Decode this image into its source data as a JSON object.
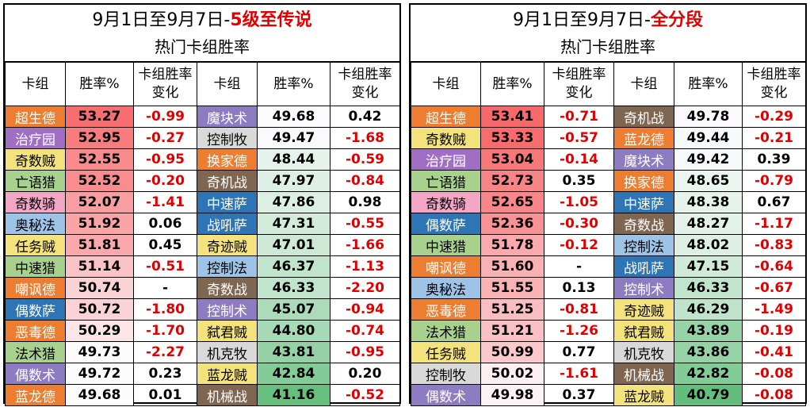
{
  "colors": {
    "class": {
      "druid": "#ED7D31",
      "priest": "#D9D9D9",
      "rogue": "#F4E27C",
      "hunter": "#A9D18E",
      "paladin": "#F4A6C6",
      "mage": "#9DC3E6",
      "shaman": "#2E75B6",
      "demonhunter": "#A06FC4",
      "warrior": "#7F6651",
      "warlock": "#8E7CC3"
    },
    "negative_text": "#E00000",
    "title_highlight": "#E00000"
  },
  "left": {
    "title_prefix": "9月1日至9月7日-",
    "title_highlight": "5级至传说",
    "subtitle": "热门卡组胜率",
    "headers": [
      "卡组",
      "胜率%",
      "卡组胜率变化",
      "卡组",
      "胜率%",
      "卡组胜率变化"
    ],
    "rows": [
      {
        "d1": "超生德",
        "c1": "druid",
        "r1": "53.27",
        "x1": "-0.99",
        "d2": "魔块术",
        "c2": "warlock",
        "r2": "49.68",
        "x2": "0.42"
      },
      {
        "d1": "治疗园",
        "c1": "demonhunter",
        "r1": "52.95",
        "x1": "-0.27",
        "d2": "控制牧",
        "c2": "priest",
        "r2": "49.47",
        "x2": "-1.68"
      },
      {
        "d1": "奇数贼",
        "c1": "rogue",
        "r1": "52.55",
        "x1": "-0.95",
        "d2": "换家德",
        "c2": "druid",
        "r2": "48.44",
        "x2": "-0.59"
      },
      {
        "d1": "亡语猎",
        "c1": "hunter",
        "r1": "52.52",
        "x1": "-0.20",
        "d2": "奇机战",
        "c2": "warrior",
        "r2": "47.97",
        "x2": "-0.84"
      },
      {
        "d1": "奇数骑",
        "c1": "paladin",
        "r1": "52.07",
        "x1": "-1.41",
        "d2": "中速萨",
        "c2": "shaman",
        "r2": "47.86",
        "x2": "0.98"
      },
      {
        "d1": "奥秘法",
        "c1": "mage",
        "r1": "51.92",
        "x1": "0.06",
        "d2": "战吼萨",
        "c2": "shaman",
        "r2": "47.31",
        "x2": "-0.55"
      },
      {
        "d1": "任务贼",
        "c1": "rogue",
        "r1": "51.81",
        "x1": "0.45",
        "d2": "奇迹贼",
        "c2": "rogue",
        "r2": "47.01",
        "x2": "-1.66"
      },
      {
        "d1": "中速猎",
        "c1": "hunter",
        "r1": "51.14",
        "x1": "-0.51",
        "d2": "控制法",
        "c2": "mage",
        "r2": "46.37",
        "x2": "-1.13"
      },
      {
        "d1": "嘲讽德",
        "c1": "druid",
        "r1": "50.74",
        "x1": "-",
        "d2": "奇数战",
        "c2": "warrior",
        "r2": "46.33",
        "x2": "-2.20"
      },
      {
        "d1": "偶数萨",
        "c1": "shaman",
        "r1": "50.72",
        "x1": "-1.80",
        "d2": "控制术",
        "c2": "warlock",
        "r2": "45.07",
        "x2": "-0.94"
      },
      {
        "d1": "恶毒德",
        "c1": "druid",
        "r1": "50.29",
        "x1": "-1.70",
        "d2": "弑君贼",
        "c2": "rogue",
        "r2": "44.80",
        "x2": "-0.74"
      },
      {
        "d1": "法术猎",
        "c1": "hunter",
        "r1": "49.73",
        "x1": "-2.27",
        "d2": "机克牧",
        "c2": "priest",
        "r2": "43.81",
        "x2": "-0.95"
      },
      {
        "d1": "偶数术",
        "c1": "warlock",
        "r1": "49.72",
        "x1": "0.23",
        "d2": "蓝龙贼",
        "c2": "rogue",
        "r2": "42.84",
        "x2": "0.20"
      },
      {
        "d1": "蓝龙德",
        "c1": "druid",
        "r1": "49.68",
        "x1": "0.01",
        "d2": "机械战",
        "c2": "warrior",
        "r2": "41.16",
        "x2": "-0.52"
      }
    ]
  },
  "right": {
    "title_prefix": "9月1日至9月7日-",
    "title_highlight": "全分段",
    "subtitle": "热门卡组胜率",
    "headers": [
      "卡组",
      "胜率%",
      "卡组胜率变化",
      "卡组",
      "胜率%",
      "卡组胜率变化"
    ],
    "rows": [
      {
        "d1": "超生德",
        "c1": "druid",
        "r1": "53.41",
        "x1": "-0.71",
        "d2": "奇机战",
        "c2": "warrior",
        "r2": "49.78",
        "x2": "-0.29"
      },
      {
        "d1": "奇数贼",
        "c1": "rogue",
        "r1": "53.33",
        "x1": "-0.57",
        "d2": "蓝龙德",
        "c2": "druid",
        "r2": "49.44",
        "x2": "-0.21"
      },
      {
        "d1": "治疗园",
        "c1": "demonhunter",
        "r1": "53.04",
        "x1": "-0.14",
        "d2": "魔块术",
        "c2": "warlock",
        "r2": "49.42",
        "x2": "0.39"
      },
      {
        "d1": "亡语猎",
        "c1": "hunter",
        "r1": "52.73",
        "x1": "0.35",
        "d2": "换家德",
        "c2": "druid",
        "r2": "48.65",
        "x2": "-0.79"
      },
      {
        "d1": "奇数骑",
        "c1": "paladin",
        "r1": "52.65",
        "x1": "-1.05",
        "d2": "中速萨",
        "c2": "shaman",
        "r2": "48.38",
        "x2": "0.67"
      },
      {
        "d1": "偶数萨",
        "c1": "shaman",
        "r1": "52.36",
        "x1": "-0.30",
        "d2": "奇数战",
        "c2": "warrior",
        "r2": "48.27",
        "x2": "-1.17"
      },
      {
        "d1": "中速猎",
        "c1": "hunter",
        "r1": "51.78",
        "x1": "-0.12",
        "d2": "控制法",
        "c2": "mage",
        "r2": "48.02",
        "x2": "-0.83"
      },
      {
        "d1": "嘲讽德",
        "c1": "druid",
        "r1": "51.60",
        "x1": "-",
        "d2": "战吼萨",
        "c2": "shaman",
        "r2": "47.15",
        "x2": "-0.64"
      },
      {
        "d1": "奥秘法",
        "c1": "mage",
        "r1": "51.55",
        "x1": "0.13",
        "d2": "控制术",
        "c2": "warlock",
        "r2": "46.33",
        "x2": "-0.67"
      },
      {
        "d1": "恶毒德",
        "c1": "druid",
        "r1": "51.25",
        "x1": "-0.81",
        "d2": "奇迹贼",
        "c2": "rogue",
        "r2": "46.29",
        "x2": "-1.49"
      },
      {
        "d1": "法术猎",
        "c1": "hunter",
        "r1": "51.21",
        "x1": "-1.26",
        "d2": "弑君贼",
        "c2": "rogue",
        "r2": "43.89",
        "x2": "-0.19"
      },
      {
        "d1": "任务贼",
        "c1": "rogue",
        "r1": "50.99",
        "x1": "0.77",
        "d2": "机克牧",
        "c2": "priest",
        "r2": "43.86",
        "x2": "-0.41"
      },
      {
        "d1": "控制牧",
        "c1": "priest",
        "r1": "50.02",
        "x1": "-1.61",
        "d2": "机械战",
        "c2": "warrior",
        "r2": "42.82",
        "x2": "-0.08"
      },
      {
        "d1": "偶数术",
        "c1": "warlock",
        "r1": "49.98",
        "x1": "0.37",
        "d2": "蓝龙贼",
        "c2": "rogue",
        "r2": "40.79",
        "x2": "-0.08"
      }
    ]
  }
}
